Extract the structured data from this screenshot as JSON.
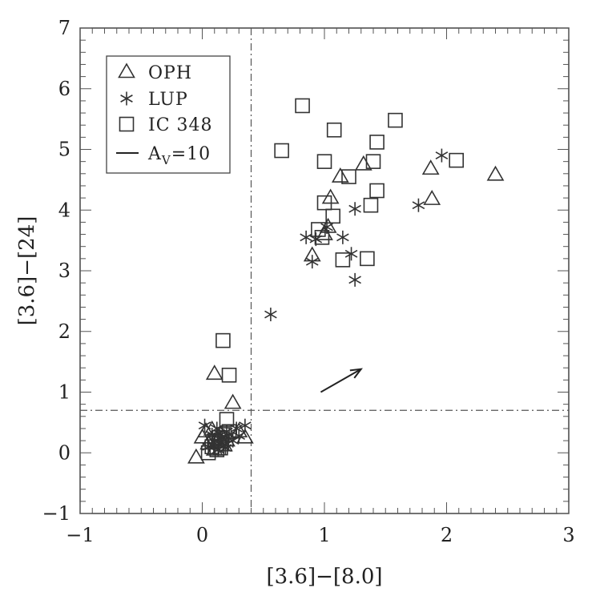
{
  "chart_data": {
    "type": "scatter",
    "title": "",
    "xlabel": "[3.6]−[8.0]",
    "ylabel": "[3.6]−[24]",
    "xlim": [
      -1,
      3
    ],
    "ylim": [
      -1,
      7
    ],
    "x_ticks": [
      -1,
      0,
      1,
      2,
      3
    ],
    "y_ticks": [
      -1,
      0,
      1,
      2,
      3,
      4,
      5,
      6,
      7
    ],
    "x_tick_labels": [
      "−1",
      "0",
      "1",
      "2",
      "3"
    ],
    "y_tick_labels": [
      "−1",
      "0",
      "1",
      "2",
      "3",
      "4",
      "5",
      "6",
      "7"
    ],
    "grid": false,
    "legend_position": "top-left",
    "reference_lines": [
      {
        "orientation": "vertical",
        "value": 0.4,
        "style": "dash-dot"
      },
      {
        "orientation": "horizontal",
        "value": 0.7,
        "style": "dash-dot"
      }
    ],
    "legend": [
      {
        "label": "OPH",
        "marker": "triangle"
      },
      {
        "label": "LUP",
        "marker": "asterisk"
      },
      {
        "label": "IC 348",
        "marker": "square"
      },
      {
        "label_main": "A",
        "label_sub": "V",
        "label_rest": "=10",
        "marker": "line"
      }
    ],
    "extinction_vector": {
      "label": "A_V=10",
      "from": [
        0.97,
        1.0
      ],
      "to": [
        1.3,
        1.38
      ]
    },
    "series": [
      {
        "name": "OPH",
        "marker": "triangle",
        "points": [
          [
            -0.05,
            -0.08
          ],
          [
            0.0,
            0.25
          ],
          [
            0.05,
            0.15
          ],
          [
            0.1,
            0.05
          ],
          [
            0.1,
            1.3
          ],
          [
            0.15,
            0.3
          ],
          [
            0.2,
            0.2
          ],
          [
            0.25,
            0.82
          ],
          [
            0.3,
            0.35
          ],
          [
            0.35,
            0.25
          ],
          [
            0.12,
            0.18
          ],
          [
            0.18,
            0.12
          ],
          [
            0.03,
            0.35
          ],
          [
            0.08,
            0.38
          ],
          [
            0.9,
            3.25
          ],
          [
            1.0,
            3.6
          ],
          [
            1.03,
            3.72
          ],
          [
            1.05,
            4.2
          ],
          [
            1.13,
            4.55
          ],
          [
            1.32,
            4.75
          ],
          [
            1.87,
            4.68
          ],
          [
            1.88,
            4.18
          ],
          [
            2.4,
            4.58
          ]
        ]
      },
      {
        "name": "LUP",
        "marker": "asterisk",
        "points": [
          [
            0.02,
            0.45
          ],
          [
            0.05,
            0.1
          ],
          [
            0.08,
            0.3
          ],
          [
            0.1,
            0.2
          ],
          [
            0.12,
            0.4
          ],
          [
            0.13,
            0.05
          ],
          [
            0.15,
            0.25
          ],
          [
            0.17,
            0.15
          ],
          [
            0.2,
            0.35
          ],
          [
            0.22,
            0.3
          ],
          [
            0.25,
            0.2
          ],
          [
            0.28,
            0.4
          ],
          [
            0.3,
            0.28
          ],
          [
            0.35,
            0.45
          ],
          [
            0.1,
            0.1
          ],
          [
            0.14,
            0.32
          ],
          [
            0.19,
            0.08
          ],
          [
            0.56,
            2.28
          ],
          [
            0.85,
            3.55
          ],
          [
            0.9,
            3.15
          ],
          [
            0.93,
            3.52
          ],
          [
            1.02,
            3.72
          ],
          [
            1.15,
            3.55
          ],
          [
            1.22,
            3.28
          ],
          [
            1.25,
            4.02
          ],
          [
            1.25,
            2.85
          ],
          [
            1.77,
            4.08
          ],
          [
            1.96,
            4.9
          ]
        ]
      },
      {
        "name": "IC 348",
        "marker": "square",
        "points": [
          [
            0.05,
            0.0
          ],
          [
            0.08,
            0.1
          ],
          [
            0.1,
            0.2
          ],
          [
            0.12,
            0.05
          ],
          [
            0.14,
            0.25
          ],
          [
            0.16,
            0.15
          ],
          [
            0.18,
            0.3
          ],
          [
            0.2,
            0.55
          ],
          [
            0.22,
            0.35
          ],
          [
            0.15,
            0.08
          ],
          [
            0.17,
            1.85
          ],
          [
            0.22,
            1.28
          ],
          [
            0.65,
            4.98
          ],
          [
            0.82,
            5.72
          ],
          [
            0.95,
            3.68
          ],
          [
            0.98,
            3.55
          ],
          [
            1.0,
            4.8
          ],
          [
            1.0,
            4.12
          ],
          [
            1.07,
            3.9
          ],
          [
            1.08,
            5.32
          ],
          [
            1.15,
            3.18
          ],
          [
            1.2,
            4.55
          ],
          [
            1.35,
            3.2
          ],
          [
            1.38,
            4.08
          ],
          [
            1.4,
            4.8
          ],
          [
            1.43,
            4.32
          ],
          [
            1.43,
            5.12
          ],
          [
            1.58,
            5.48
          ],
          [
            2.08,
            4.82
          ]
        ]
      }
    ]
  }
}
